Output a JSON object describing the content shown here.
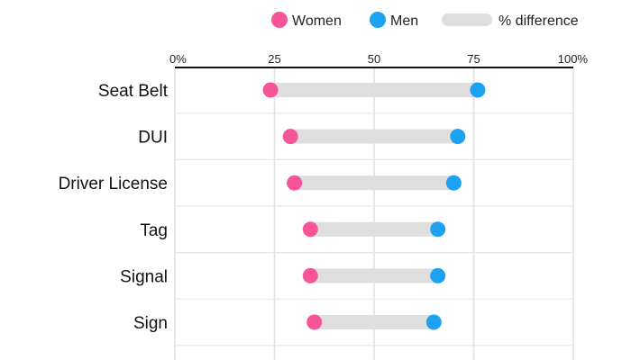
{
  "chart_data": {
    "type": "dumbbell",
    "title": "",
    "xlabel": "",
    "ylabel": "",
    "xlim": [
      0,
      100
    ],
    "x_ticks": [
      "0%",
      "25",
      "50",
      "75",
      "100%"
    ],
    "x_tick_values": [
      0,
      25,
      50,
      75,
      100
    ],
    "grid": true,
    "legend_position": "top-right",
    "legend": [
      {
        "key": "women",
        "label": "Women",
        "color": "#f7559a",
        "marker": "circle"
      },
      {
        "key": "men",
        "label": "Men",
        "color": "#1da1f2",
        "marker": "circle"
      },
      {
        "key": "diff",
        "label": "% difference",
        "color": "#dedede",
        "marker": "bar"
      }
    ],
    "categories": [
      "Seat Belt",
      "DUI",
      "Driver License",
      "Tag",
      "Signal",
      "Sign"
    ],
    "series": [
      {
        "name": "Women",
        "values": [
          24,
          29,
          30,
          34,
          34,
          35
        ]
      },
      {
        "name": "Men",
        "values": [
          76,
          71,
          70,
          66,
          66,
          65
        ]
      }
    ]
  }
}
